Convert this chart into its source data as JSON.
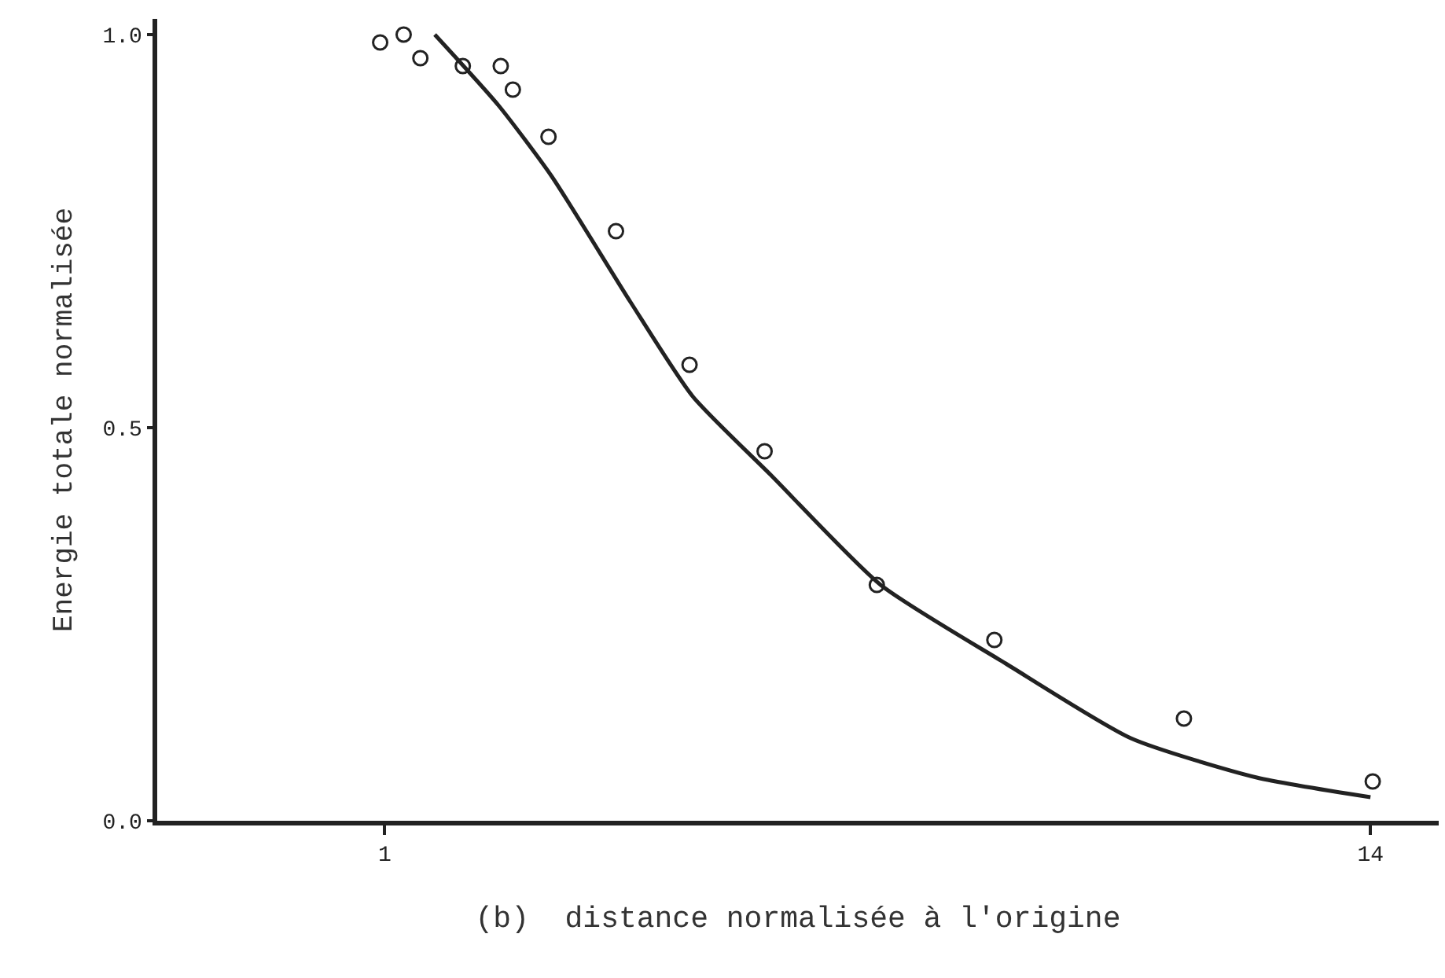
{
  "chart_data": {
    "type": "scatter",
    "xlabel": "(b)  distance normalisée à l'origine",
    "ylabel": "Energie totale normalisée",
    "xlim": [
      -2,
      14.9
    ],
    "xticks": [
      1,
      14
    ],
    "ylim": [
      0,
      1.02
    ],
    "yticks": [
      {
        "value": 0,
        "label": "0.0"
      },
      {
        "value": 0.5,
        "label": "0.5"
      },
      {
        "value": 1,
        "label": "1.0"
      }
    ],
    "grid": false,
    "legend": false,
    "marker": "circle",
    "series": [
      {
        "color": "#222222",
        "x": [
          0.94,
          1.25,
          1.47,
          2.03,
          2.53,
          2.69,
          3.16,
          4.05,
          5.02,
          6.01,
          7.49,
          9.04,
          11.54,
          14.03
        ],
        "values": [
          0.99,
          1.0,
          0.97,
          0.96,
          0.96,
          0.93,
          0.87,
          0.75,
          0.58,
          0.47,
          0.3,
          0.23,
          0.13,
          0.05
        ]
      },
      {
        "type": "line",
        "color": "#222222",
        "marker": "none",
        "x": [
          1.66,
          2.5,
          3.2,
          4.24,
          5.06,
          6.09,
          7.54,
          9.19,
          10.84,
          12.5,
          14.0
        ],
        "values": [
          1.0,
          0.91,
          0.82,
          0.66,
          0.54,
          0.44,
          0.3,
          0.2,
          0.105,
          0.055,
          0.03
        ]
      }
    ]
  }
}
